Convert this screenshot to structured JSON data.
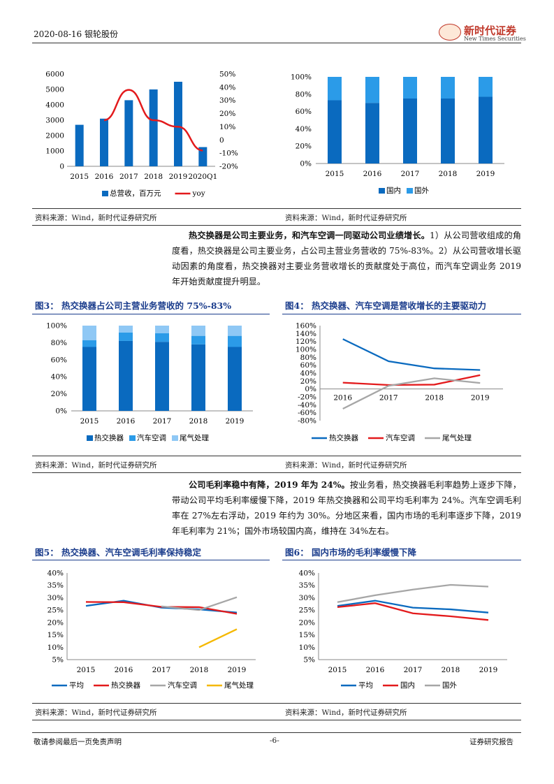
{
  "header": {
    "date_company": "2020-08-16 银轮股份",
    "logo_cn": "新时代证券",
    "logo_en": "New Times Securities",
    "logo_mark": "NEW TIMES"
  },
  "footer": {
    "left": "敬请参阅最后一页免责声明",
    "center": "-6-",
    "right": "证券研究报告"
  },
  "source_text": "资料来源：Wind，新时代证券研究所",
  "para1": {
    "bold": "热交换器是公司主要业务，和汽车空调一同驱动公司业绩增长。",
    "rest": "1）从公司营收组成的角度看，热交换器是公司主要业务，占公司主营业务营收的 75%-83%。2）从公司营收增长驱动因素的角度看，热交换器对主要业务营收增长的贡献度处于高位，而汽车空调业务 2019 年开始贡献度提升明显。"
  },
  "para2": {
    "bold": "公司毛利率稳中有降，2019 年为 24%。",
    "rest": "按业务看，热交换器毛利率趋势上逐步下降，带动公司平均毛利率缓慢下降，2019 年热交换器和公司平均毛利率为 24%。汽车空调毛利率在 27%左右浮动，2019 年约为 30%。分地区来看，国内市场的毛利率逐步下降，2019 年毛利率为 21%；国外市场较国内高，维持在 34%左右。"
  },
  "fig3_title": "图3：  热交换器占公司主营业务营收的 75%-83%",
  "fig4_title": "图4：  热交换器、汽车空调是营收增长的主要驱动力",
  "fig5_title": "图5：  热交换器、汽车空调毛利率保持稳定",
  "fig6_title": "图6：  国内市场的毛利率缓慢下降",
  "colors": {
    "dark_blue": "#0a6abf",
    "light_blue": "#2b9be8",
    "pale_blue": "#8fc8f5",
    "red": "#e31a1c",
    "gray": "#a6a6a6",
    "yellow": "#f5b800",
    "title_blue": "#1a3c8c"
  },
  "chart_data": [
    {
      "id": "c1",
      "type": "bar+line",
      "categories": [
        "2015",
        "2016",
        "2017",
        "2018",
        "2019",
        "2020Q1"
      ],
      "series": [
        {
          "name": "总营收，百万元",
          "type": "bar",
          "axis": "left",
          "values": [
            2700,
            3100,
            4300,
            5000,
            5500,
            1250
          ]
        },
        {
          "name": "yoy",
          "type": "line",
          "axis": "right",
          "values": [
            null,
            15,
            38,
            15,
            10,
            -8
          ]
        }
      ],
      "y_left": {
        "ylim": [
          0,
          6000
        ],
        "ticks": [
          "0",
          "1000",
          "2000",
          "3000",
          "4000",
          "5000",
          "6000"
        ]
      },
      "y_right": {
        "ylim": [
          -20,
          50
        ],
        "ticks": [
          "-20%",
          "-10%",
          "0",
          "10%",
          "20%",
          "30%",
          "40%",
          "50%"
        ]
      }
    },
    {
      "id": "c2",
      "type": "stacked_bar_100",
      "categories": [
        "2015",
        "2016",
        "2017",
        "2018",
        "2019"
      ],
      "series": [
        {
          "name": "国内",
          "values": [
            73,
            70,
            75,
            75,
            77
          ]
        },
        {
          "name": "国外",
          "values": [
            27,
            30,
            25,
            25,
            23
          ]
        }
      ],
      "y": {
        "ylim": [
          0,
          100
        ],
        "ticks": [
          "0%",
          "20%",
          "40%",
          "60%",
          "80%",
          "100%"
        ]
      }
    },
    {
      "id": "c3",
      "type": "stacked_bar_100",
      "categories": [
        "2015",
        "2016",
        "2017",
        "2018",
        "2019"
      ],
      "series": [
        {
          "name": "热交换器",
          "values": [
            75,
            82,
            81,
            78,
            75
          ]
        },
        {
          "name": "汽车空调",
          "values": [
            8,
            10,
            10,
            10,
            13
          ]
        },
        {
          "name": "尾气处理",
          "values": [
            17,
            8,
            9,
            12,
            12
          ]
        }
      ],
      "y": {
        "ylim": [
          0,
          100
        ],
        "ticks": [
          "0%",
          "20%",
          "40%",
          "60%",
          "80%",
          "100%"
        ]
      }
    },
    {
      "id": "c4",
      "type": "line",
      "categories": [
        "2016",
        "2017",
        "2018",
        "2019"
      ],
      "series": [
        {
          "name": "热交换器",
          "values": [
            126,
            70,
            52,
            48
          ]
        },
        {
          "name": "汽车空调",
          "values": [
            16,
            10,
            11,
            35
          ]
        },
        {
          "name": "尾气处理",
          "values": [
            -50,
            8,
            27,
            15
          ]
        }
      ],
      "y": {
        "ylim": [
          -80,
          160
        ],
        "ticks": [
          "-80%",
          "-60%",
          "-40%",
          "-20%",
          "0%",
          "20%",
          "40%",
          "60%",
          "80%",
          "100%",
          "120%",
          "140%",
          "160%"
        ]
      }
    },
    {
      "id": "c5",
      "type": "line",
      "categories": [
        "2015",
        "2016",
        "2017",
        "2018",
        "2019"
      ],
      "series": [
        {
          "name": "平均",
          "values": [
            26.7,
            28.8,
            26.0,
            25.3,
            24.0
          ]
        },
        {
          "name": "热交换器",
          "values": [
            28.3,
            28.2,
            26.3,
            26.2,
            23.5
          ]
        },
        {
          "name": "汽车空调",
          "values": [
            null,
            null,
            26.5,
            25.0,
            30.2
          ]
        },
        {
          "name": "尾气处理",
          "values": [
            null,
            null,
            null,
            10.0,
            17.3
          ]
        }
      ],
      "y": {
        "ylim": [
          5,
          40
        ],
        "ticks": [
          "5%",
          "10%",
          "15%",
          "20%",
          "25%",
          "30%",
          "35%",
          "40%"
        ]
      }
    },
    {
      "id": "c6",
      "type": "line",
      "categories": [
        "2015",
        "2016",
        "2017",
        "2018",
        "2019"
      ],
      "series": [
        {
          "name": "平均",
          "values": [
            26.7,
            28.8,
            26.0,
            25.3,
            24.0
          ]
        },
        {
          "name": "国内",
          "values": [
            26.2,
            27.8,
            23.7,
            22.5,
            21.0
          ]
        },
        {
          "name": "国外",
          "values": [
            28.2,
            31.0,
            33.3,
            35.2,
            34.5
          ]
        }
      ],
      "y": {
        "ylim": [
          5,
          40
        ],
        "ticks": [
          "5%",
          "10%",
          "15%",
          "20%",
          "25%",
          "30%",
          "35%",
          "40%"
        ]
      }
    }
  ]
}
